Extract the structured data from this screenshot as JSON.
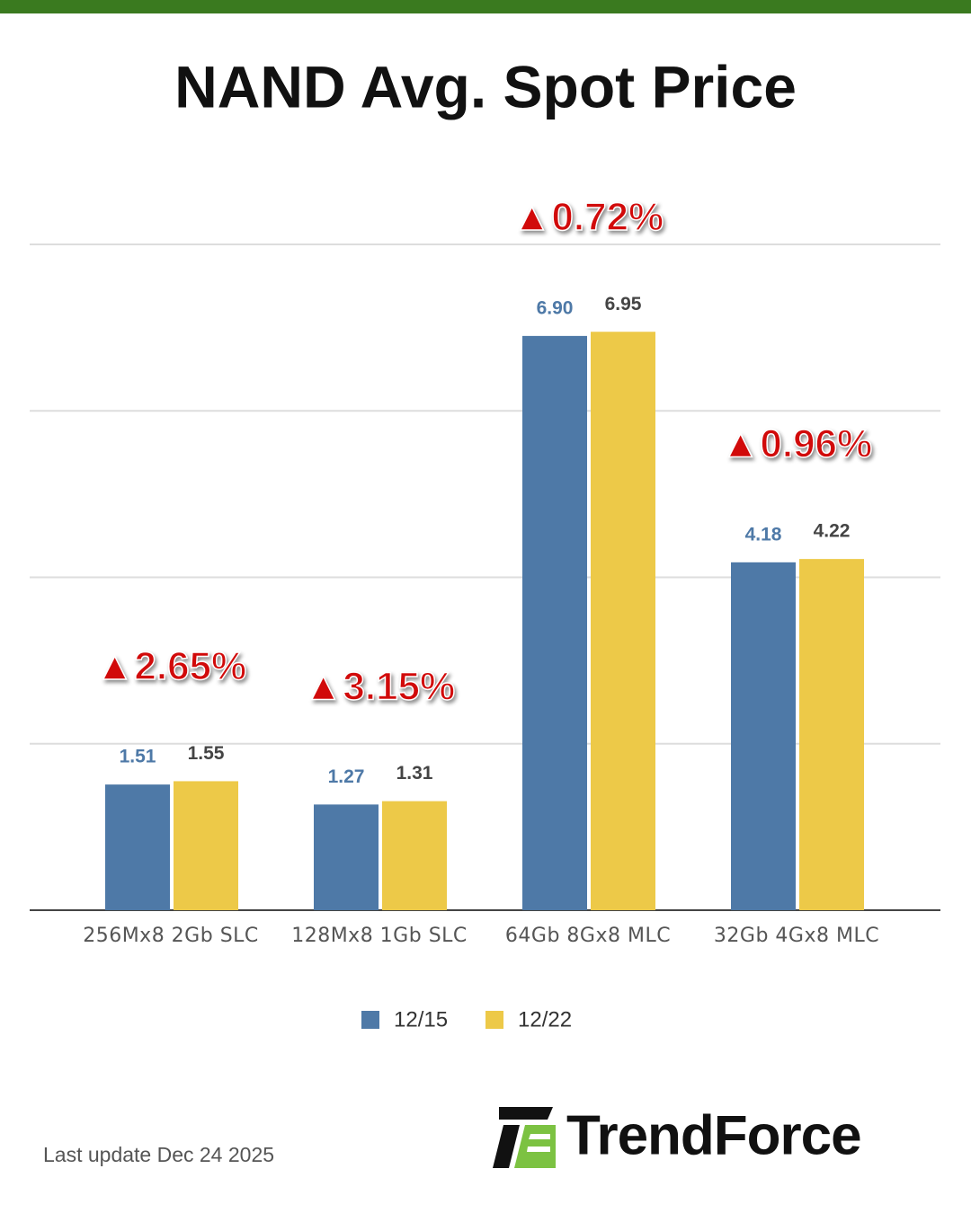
{
  "chart_data": {
    "type": "bar",
    "title": "NAND Avg. Spot Price",
    "categories": [
      "256Mx8 2Gb SLC",
      "128Mx8 1Gb SLC",
      "64Gb 8Gx8 MLC",
      "32Gb 4Gx8 MLC"
    ],
    "series": [
      {
        "name": "12/15",
        "color": "#4e79a7",
        "values": [
          1.51,
          1.27,
          6.9,
          4.18
        ],
        "value_labels": [
          "1.51",
          "1.27",
          "6.90",
          "4.18"
        ],
        "label_color": "#4e79a7"
      },
      {
        "name": "12/22",
        "color": "#edc948",
        "values": [
          1.55,
          1.31,
          6.95,
          4.22
        ],
        "value_labels": [
          "1.55",
          "1.31",
          "6.95",
          "4.22"
        ],
        "label_color": "#444444"
      }
    ],
    "annotations": [
      "▲2.65%",
      "▲3.15%",
      "▲0.72%",
      "▲0.96%"
    ],
    "ylim": [
      0,
      8
    ],
    "yticks": [
      0,
      2,
      4,
      6,
      8
    ],
    "grid": true,
    "legend": "bottom"
  },
  "footer": "Last update Dec 24 2025",
  "brand": "TrendForce"
}
